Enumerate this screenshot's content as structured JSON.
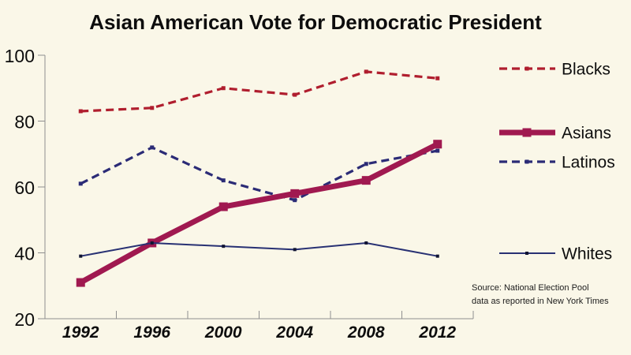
{
  "source_note": {
    "line1": "Source: National Election Pool",
    "line2": "data as reported in New York Times"
  },
  "chart_data": {
    "type": "line",
    "title": "Asian American Vote for Democratic President",
    "categories": [
      "1992",
      "1996",
      "2000",
      "2004",
      "2008",
      "2012"
    ],
    "series": [
      {
        "name": "Blacks",
        "values": [
          83,
          84,
          90,
          88,
          95,
          93
        ],
        "color": "#b01e2e",
        "line_style": "dashed",
        "thickness": 3.2,
        "marker": "small-square",
        "marker_size": 5,
        "marker_color": "#b01e2e"
      },
      {
        "name": "Asians",
        "values": [
          31,
          43,
          54,
          58,
          62,
          73
        ],
        "color": "#a01950",
        "line_style": "solid",
        "thickness": 7,
        "marker": "square",
        "marker_size": 11,
        "marker_color": "#a01950"
      },
      {
        "name": "Latinos",
        "values": [
          61,
          72,
          62,
          56,
          67,
          71
        ],
        "color": "#2b2b76",
        "line_style": "dashed",
        "thickness": 3.2,
        "marker": "small-square",
        "marker_size": 5,
        "marker_color": "#2b2b76"
      },
      {
        "name": "Whites",
        "values": [
          39,
          43,
          42,
          41,
          43,
          39
        ],
        "color": "#283173",
        "line_style": "solid",
        "thickness": 2,
        "marker": "dot",
        "marker_size": 4,
        "marker_color": "#101432"
      }
    ],
    "xlabel": "",
    "ylabel": "",
    "ylim": [
      20,
      100
    ],
    "yticks": [
      20,
      40,
      60,
      80,
      100
    ],
    "grid": false,
    "legend_position": "right",
    "axis_color": "#8f8f8f",
    "text_color": "#0d0d0d",
    "background_color": "#faf7e8"
  }
}
